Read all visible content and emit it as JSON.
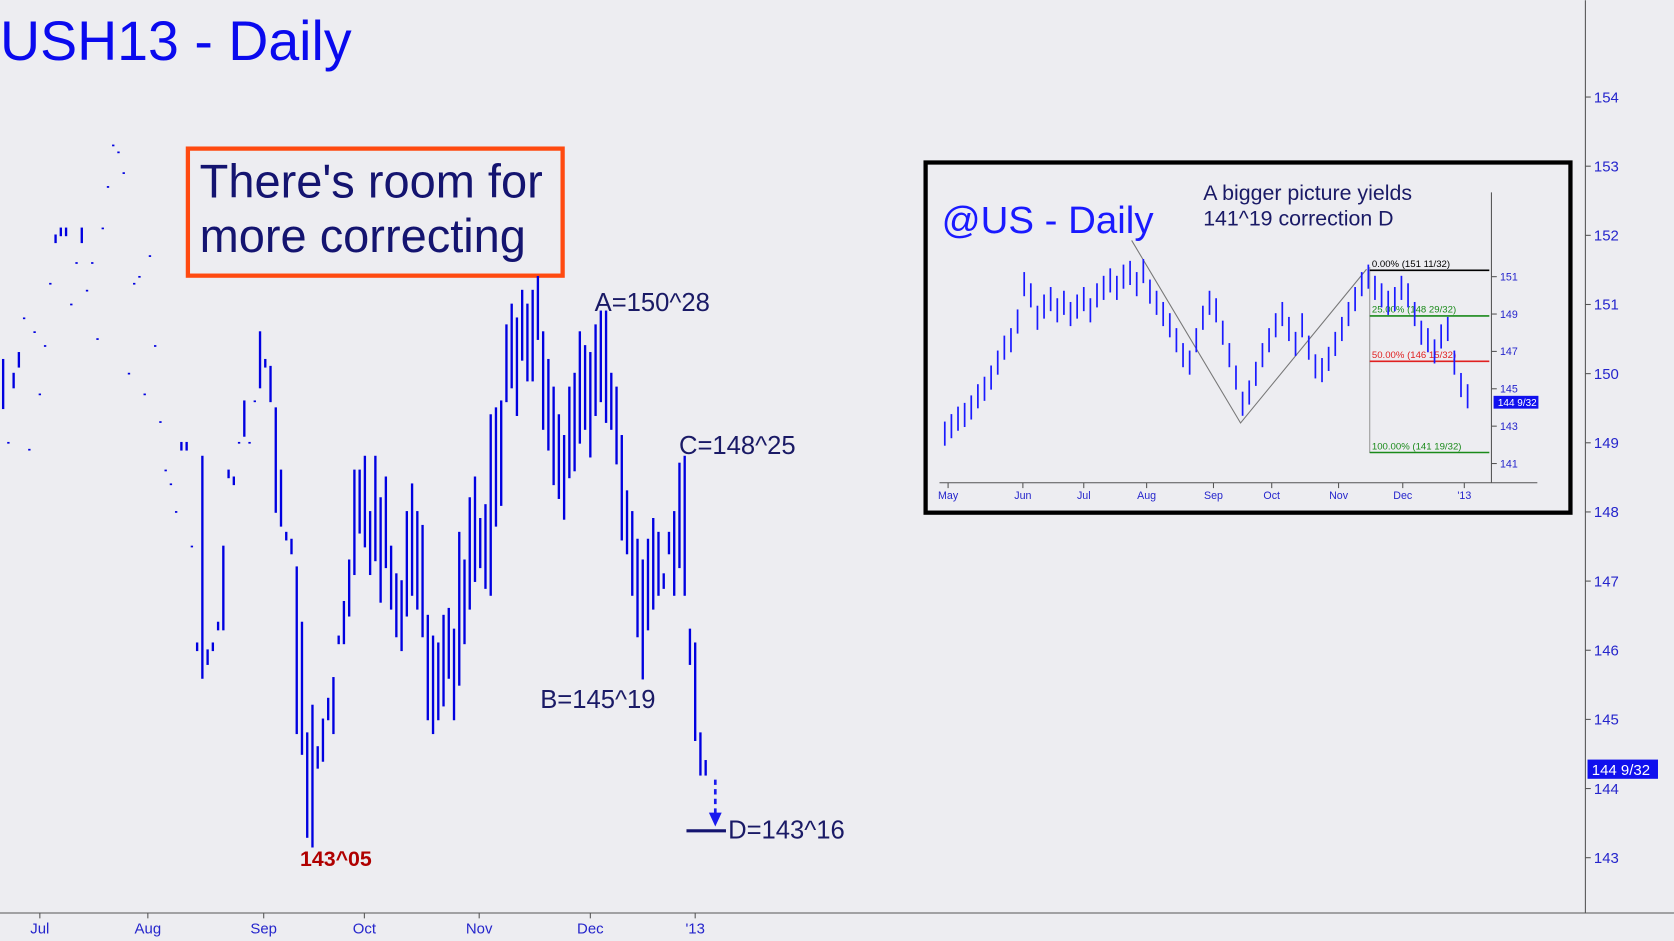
{
  "chart_data": [
    {
      "type": "range_bar",
      "title": "USH13 - Daily",
      "color": "#0000e0",
      "callout": [
        "There's room for",
        "more correcting"
      ],
      "annotations": [
        "A=150^28",
        "B=145^19",
        "C=148^25",
        "D=143^16"
      ],
      "low_label": "143^05",
      "highs": [
        150.2,
        149.0,
        150.0,
        150.3,
        150.8,
        148.9,
        150.6,
        149.7,
        150.4,
        151.3,
        152.0,
        152.1,
        152.1,
        151.0,
        151.6,
        152.1,
        151.2,
        151.6,
        150.5,
        152.1,
        152.7,
        153.3,
        153.2,
        152.9,
        150.0,
        151.3,
        151.4,
        149.7,
        151.7,
        150.4,
        149.3,
        148.6,
        148.4,
        148.0,
        149.0,
        149.0,
        147.5,
        146.1,
        148.8,
        146.0,
        146.1,
        146.4,
        147.5,
        148.6,
        148.5,
        149.0,
        149.6,
        149.0,
        149.6,
        150.6,
        150.2,
        150.1,
        149.5,
        148.6,
        147.7,
        147.6,
        147.2,
        146.4,
        144.8,
        145.2,
        144.6,
        145.0,
        145.3,
        145.6,
        146.2,
        146.7,
        147.3,
        148.6,
        148.6,
        148.8,
        148.0,
        148.8,
        148.2,
        148.5,
        147.5,
        147.1,
        147.0,
        148.0,
        148.4,
        148.0,
        147.8,
        146.5,
        146.2,
        146.1,
        146.5,
        146.6,
        146.3,
        147.7,
        147.3,
        148.2,
        148.5,
        147.9,
        148.1,
        149.4,
        149.5,
        149.6,
        150.7,
        151.0,
        150.8,
        151.2,
        151.0,
        151.2,
        151.4,
        150.6,
        150.2,
        149.8,
        149.4,
        149.1,
        149.8,
        150.0,
        150.6,
        150.4,
        150.3,
        150.7,
        150.9,
        150.9,
        150.0,
        149.8,
        149.1,
        148.3,
        148.0,
        147.6,
        147.3,
        147.6,
        147.9,
        147.7,
        147.1,
        147.7,
        148.0,
        148.7,
        148.8,
        146.3,
        146.1,
        144.8,
        144.4
      ],
      "lows": [
        149.5,
        149.0,
        149.8,
        150.1,
        150.8,
        148.9,
        150.6,
        149.7,
        150.4,
        151.3,
        151.9,
        152.0,
        152.0,
        151.0,
        151.6,
        151.9,
        151.2,
        151.6,
        150.5,
        152.1,
        152.7,
        153.3,
        153.2,
        152.9,
        150.0,
        151.3,
        151.4,
        149.7,
        151.7,
        150.4,
        149.3,
        148.6,
        148.4,
        148.0,
        148.9,
        148.9,
        147.5,
        146.0,
        145.6,
        145.8,
        146.0,
        146.3,
        146.3,
        148.5,
        148.4,
        149.0,
        149.1,
        149.0,
        149.6,
        149.8,
        150.1,
        149.6,
        148.0,
        147.8,
        147.6,
        147.4,
        144.8,
        144.5,
        143.3,
        143.16,
        144.3,
        144.4,
        145.0,
        144.8,
        146.1,
        146.1,
        146.5,
        147.1,
        147.7,
        147.5,
        147.1,
        147.3,
        146.7,
        147.2,
        146.6,
        146.2,
        146.0,
        146.5,
        146.8,
        146.6,
        146.2,
        145.0,
        144.8,
        145.0,
        145.2,
        145.6,
        145.0,
        145.5,
        146.1,
        146.6,
        147.0,
        147.2,
        146.9,
        146.8,
        147.8,
        148.1,
        149.6,
        149.8,
        149.4,
        150.2,
        149.9,
        149.9,
        150.5,
        149.2,
        148.9,
        148.4,
        148.2,
        147.9,
        148.5,
        148.6,
        149.0,
        149.2,
        148.8,
        149.4,
        149.6,
        149.3,
        149.2,
        148.7,
        147.6,
        147.4,
        146.8,
        146.2,
        145.59,
        146.3,
        146.6,
        146.8,
        146.9,
        147.4,
        146.8,
        147.2,
        146.8,
        145.8,
        144.7,
        144.2,
        144.2
      ],
      "xlim": [
        -0.6,
        301.8
      ],
      "xticks": [
        {
          "value": 7,
          "label": "Jul"
        },
        {
          "value": 27.6,
          "label": "Aug"
        },
        {
          "value": 49.7,
          "label": "Sep"
        },
        {
          "value": 68.9,
          "label": "Oct"
        },
        {
          "value": 90.8,
          "label": "Nov"
        },
        {
          "value": 112,
          "label": "Dec"
        },
        {
          "value": 132,
          "label": "'13"
        }
      ],
      "ylim": [
        142.2,
        155.4
      ],
      "yticks": [
        143,
        144,
        145,
        146,
        147,
        148,
        149,
        150,
        151,
        152,
        153,
        154
      ],
      "last_price": {
        "value": 144.28,
        "label": "144 9/32"
      }
    },
    {
      "type": "range_bar",
      "title": "@US - Daily",
      "color": "#1a1aff",
      "note": [
        "A bigger picture yields",
        "141^19 correction D"
      ],
      "highs": [
        143.2,
        143.6,
        144.0,
        144.2,
        144.6,
        145.2,
        145.6,
        146.2,
        147.0,
        147.8,
        148.2,
        149.2,
        151.2,
        150.6,
        149.4,
        150.0,
        150.4,
        149.8,
        150.2,
        149.6,
        150.0,
        150.4,
        149.8,
        150.6,
        151.0,
        151.4,
        151.0,
        151.6,
        151.8,
        151.2,
        151.9,
        150.8,
        150.2,
        149.6,
        149.0,
        148.2,
        147.4,
        147.0,
        148.2,
        149.4,
        150.2,
        149.8,
        148.6,
        147.4,
        146.2,
        144.8,
        145.4,
        146.4,
        147.4,
        148.2,
        149.0,
        149.6,
        148.8,
        148.0,
        149.0,
        147.8,
        146.8,
        146.6,
        147.2,
        148.0,
        148.8,
        149.6,
        150.4,
        151.2,
        151.6,
        151.0,
        150.6,
        150.2,
        150.4,
        151.0,
        150.6,
        149.6,
        148.6,
        148.2,
        147.6,
        148.4,
        148.8,
        147.0,
        145.8,
        145.2
      ],
      "lows": [
        142.0,
        142.4,
        142.8,
        143.0,
        143.4,
        144.0,
        144.4,
        145.0,
        145.8,
        146.6,
        147.0,
        148.0,
        150.0,
        149.4,
        148.2,
        148.8,
        149.2,
        148.6,
        149.0,
        148.4,
        148.8,
        149.2,
        148.6,
        149.4,
        149.8,
        150.2,
        149.8,
        150.4,
        150.6,
        150.0,
        150.7,
        149.6,
        149.0,
        148.4,
        147.8,
        147.0,
        146.2,
        145.8,
        147.0,
        148.2,
        149.0,
        148.6,
        147.4,
        146.2,
        145.0,
        143.6,
        144.2,
        145.2,
        146.2,
        147.0,
        147.8,
        148.4,
        147.6,
        146.8,
        147.8,
        146.6,
        145.6,
        145.4,
        146.0,
        146.8,
        147.6,
        148.4,
        149.2,
        150.0,
        150.4,
        149.8,
        149.4,
        149.0,
        149.2,
        149.8,
        149.4,
        148.4,
        147.4,
        147.0,
        146.4,
        147.2,
        147.6,
        145.8,
        144.6,
        144.0
      ],
      "xlim": [
        -0.8,
        82.6
      ],
      "xticks": [
        {
          "value": 0.5,
          "label": "May"
        },
        {
          "value": 11.8,
          "label": "Jun"
        },
        {
          "value": 21,
          "label": "Jul"
        },
        {
          "value": 30.5,
          "label": "Aug"
        },
        {
          "value": 40.6,
          "label": "Sep"
        },
        {
          "value": 49.4,
          "label": "Oct"
        },
        {
          "value": 59.5,
          "label": "Nov"
        },
        {
          "value": 69.2,
          "label": "Dec"
        },
        {
          "value": 78.5,
          "label": "'13"
        }
      ],
      "ylim": [
        139.97,
        155.51
      ],
      "yticks": [
        141,
        143,
        145,
        147,
        149,
        151
      ],
      "levels": [
        {
          "value": 151.34,
          "label": "0.00% (151 11/32)",
          "color": "#000000"
        },
        {
          "value": 148.9,
          "label": "25.00% (148 29/32)",
          "color": "#1a8a1a"
        },
        {
          "value": 146.47,
          "label": "50.00% (146 15/32)",
          "color": "#e02020"
        },
        {
          "value": 141.59,
          "label": "100.00% (141 19/32)",
          "color": "#1a8a1a"
        }
      ],
      "last_price": {
        "value": 144.28,
        "label": "144 9/32"
      }
    }
  ]
}
